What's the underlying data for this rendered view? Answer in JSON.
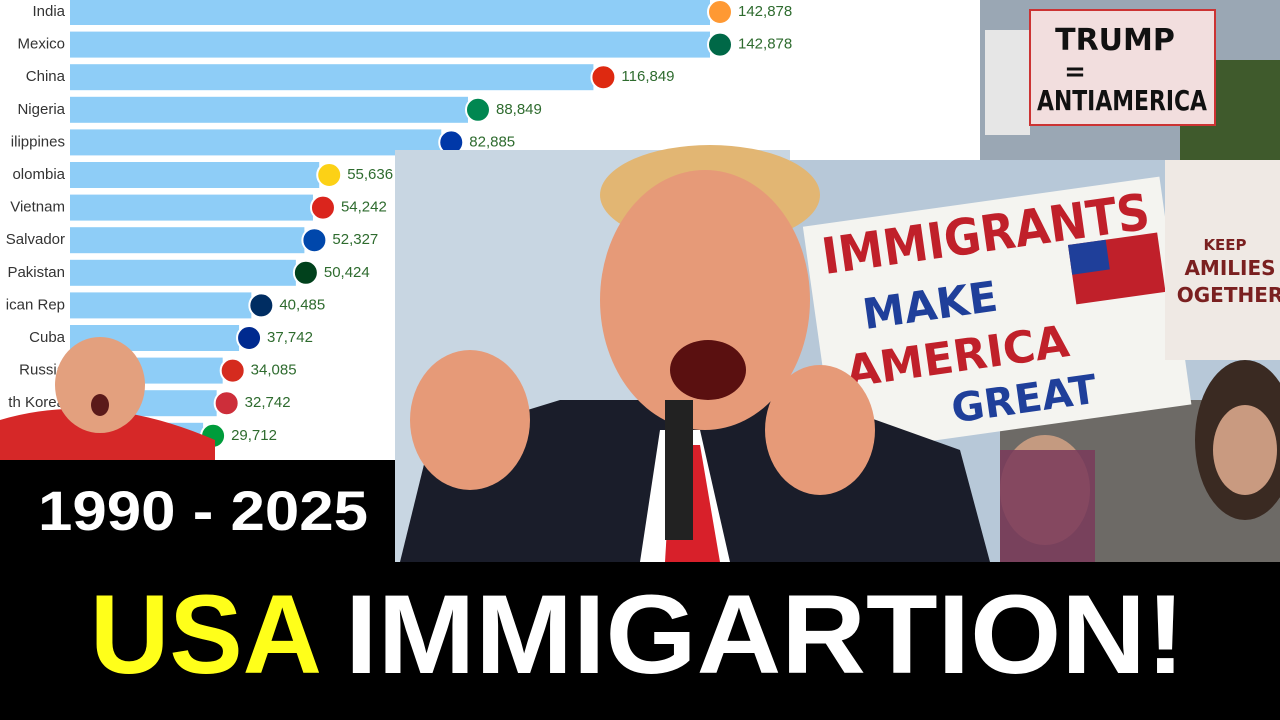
{
  "chart_data": {
    "type": "bar",
    "orientation": "horizontal",
    "categories": [
      "India",
      "Mexico",
      "China",
      "Nigeria",
      "ilippines",
      "olombia",
      "Vietnam",
      "Salvador",
      "Pakistan",
      "ican Rep",
      "Cuba",
      "Russia",
      "th Korea",
      null
    ],
    "values": [
      142878,
      142878,
      116849,
      88849,
      82885,
      55636,
      54242,
      52327,
      50424,
      40485,
      37742,
      34085,
      32742,
      29712
    ],
    "value_labels": [
      "142,878",
      "142,878",
      "116,849",
      "88,849",
      "82,885",
      "55,636",
      "54,242",
      "52,327",
      "50,424",
      "40,485",
      "37,742",
      "34,085",
      "32,742",
      "29,712"
    ],
    "color": "#8ecdf7"
  },
  "headline": {
    "years": "1990 - 2025",
    "country": "USA",
    "topic": "IMMIGARTION!"
  },
  "sign_top": [
    "TRUMP",
    "=",
    "ANTIAMERICA"
  ],
  "sign_main": [
    "IMMIGRANTS",
    "MAKE",
    "AMERICA",
    "GREAT"
  ],
  "sign_side": [
    "KEEP",
    "AMILIES",
    "OGETHER"
  ]
}
